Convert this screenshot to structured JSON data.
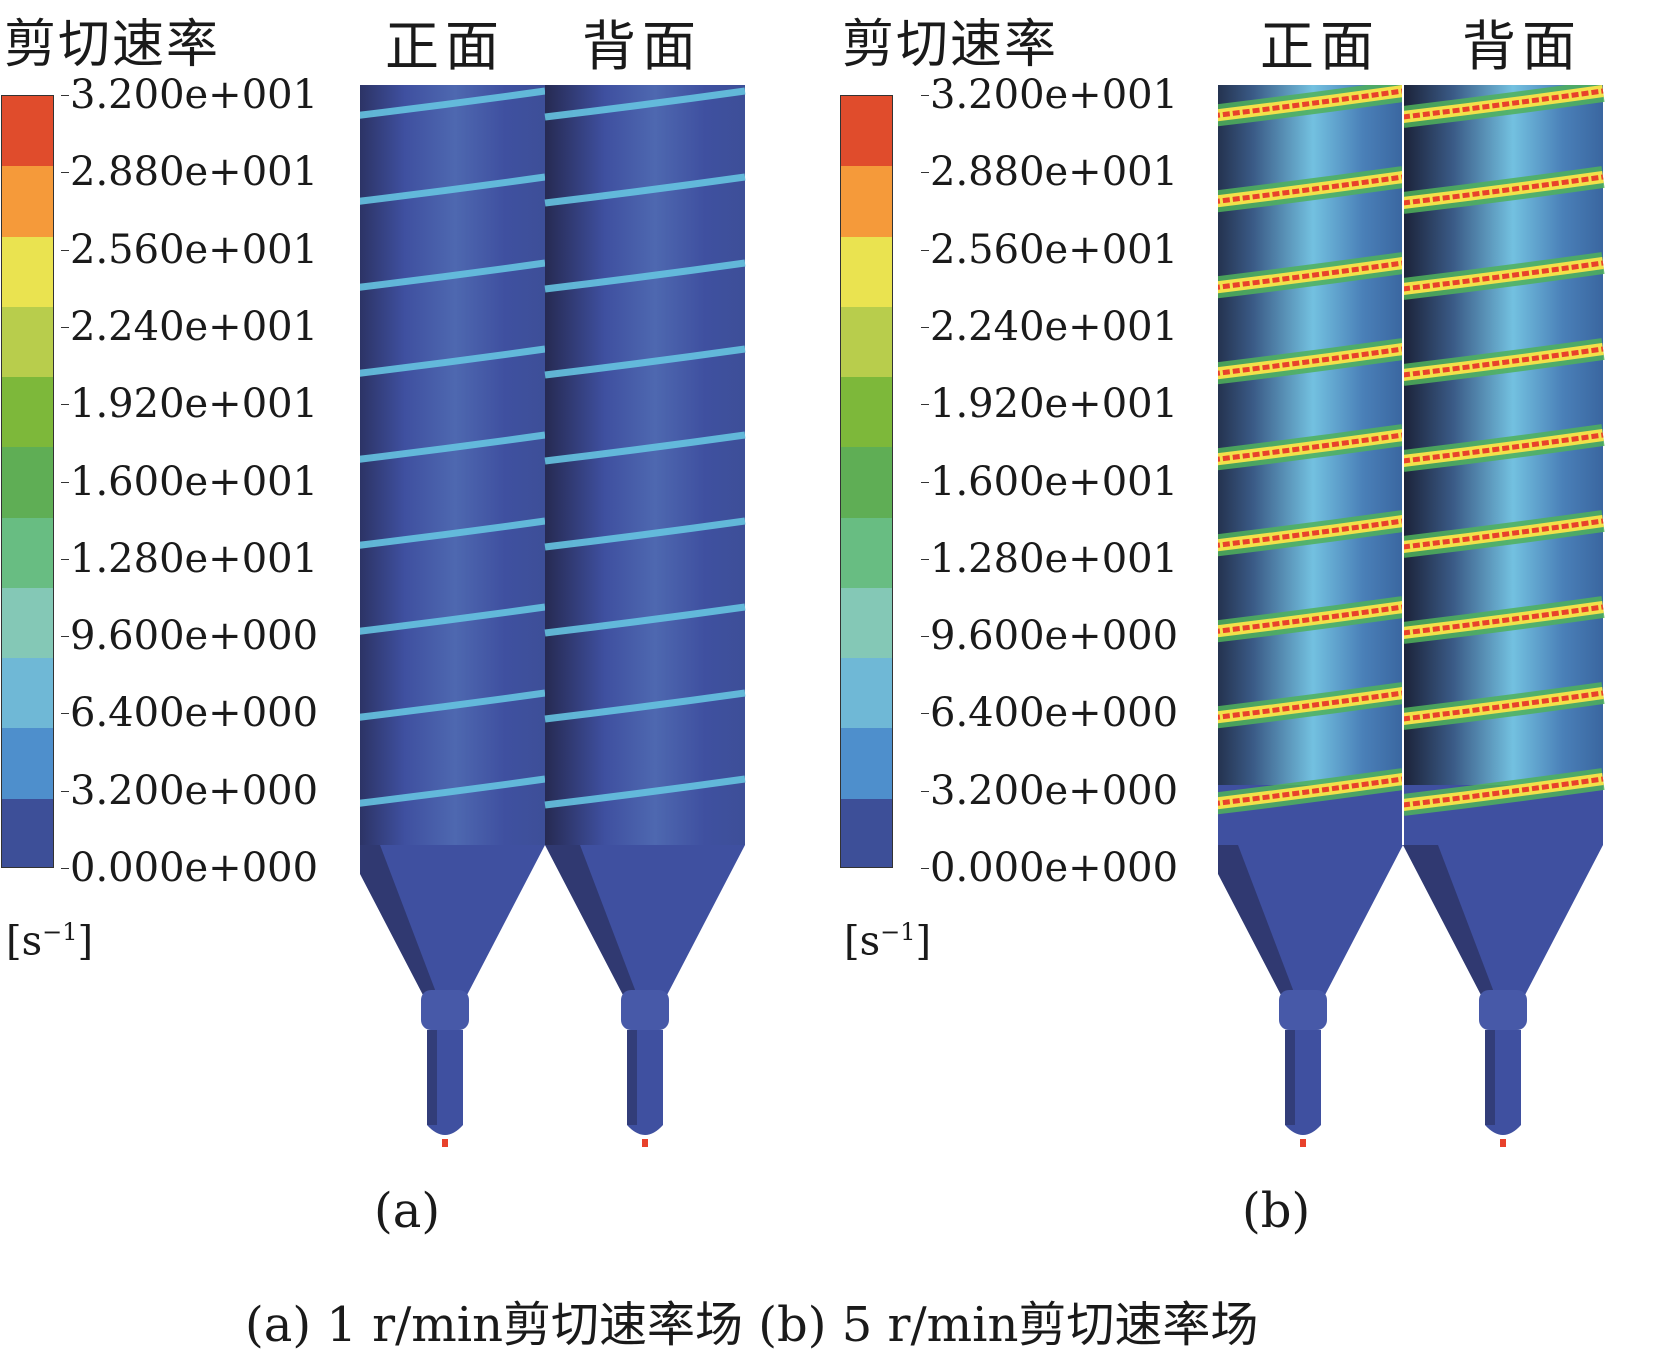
{
  "legend_title": "剪切速率",
  "view_front": "正面",
  "view_back": "背面",
  "unit_prefix": "[s",
  "unit_exponent": "−1",
  "unit_suffix": "]",
  "colorbar": {
    "labels": [
      "3.200e+001",
      "2.880e+001",
      "2.560e+001",
      "2.240e+001",
      "1.920e+001",
      "1.600e+001",
      "1.280e+001",
      "9.600e+000",
      "6.400e+000",
      "3.200e+000",
      "0.000e+000"
    ],
    "bands_top_to_bottom": [
      "#e04c2c",
      "#f59a3a",
      "#eae350",
      "#b8cd4c",
      "#7db83a",
      "#5fae55",
      "#68bd82",
      "#84c8b6",
      "#6fb8d6",
      "#4e8fcc",
      "#3d4f98"
    ]
  },
  "colors": {
    "base_blue": "#3f50a0",
    "shade_dark": "#1a1f3a",
    "band_light": "#66c3e0",
    "band_high": "#e8412b",
    "band_mid": "#f2e14a",
    "band_green": "#4fb25a"
  },
  "panel_a": {
    "sub_label": "(a)"
  },
  "panel_b": {
    "sub_label": "(b)"
  },
  "caption": "(a) 1 r/min剪切速率场    (b) 5 r/min剪切速率场"
}
